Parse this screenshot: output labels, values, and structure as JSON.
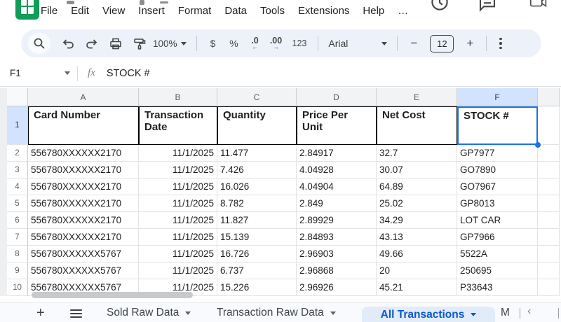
{
  "menu": {
    "items": [
      "File",
      "Edit",
      "View",
      "Insert",
      "Format",
      "Data",
      "Tools",
      "Extensions",
      "Help",
      "…"
    ]
  },
  "toolbar": {
    "zoom_value": "100%",
    "currency_label": "$",
    "percent_label": "%",
    "decrease_decimal_label": ".0",
    "decrease_decimal_arrow": "←",
    "increase_decimal_label": ".00",
    "increase_decimal_arrow": "→",
    "number_format_label": "123",
    "font_name": "Arial",
    "decrease_font_label": "−",
    "font_size": "12",
    "increase_font_label": "+"
  },
  "formula_bar": {
    "cell_reference": "F1",
    "function_label": "fx",
    "content": "STOCK #"
  },
  "grid": {
    "column_letters": [
      "A",
      "B",
      "C",
      "D",
      "E",
      "F",
      ""
    ],
    "selected_column_index": 5,
    "selected_cell": "F1",
    "header_row_number": "1",
    "headers": [
      "Card Number",
      "Transaction Date",
      "Quantity",
      "Price Per Unit",
      "Net Cost",
      "STOCK #"
    ],
    "rows": [
      {
        "n": "2",
        "cells": [
          "556780XXXXXX2170",
          "11/1/2025",
          "11.477",
          "2.84917",
          "32.7",
          "GP7977"
        ]
      },
      {
        "n": "3",
        "cells": [
          "556780XXXXXX2170",
          "11/1/2025",
          "7.426",
          "4.04928",
          "30.07",
          "GO7890"
        ]
      },
      {
        "n": "4",
        "cells": [
          "556780XXXXXX2170",
          "11/1/2025",
          "16.026",
          "4.04904",
          "64.89",
          "GO7967"
        ]
      },
      {
        "n": "5",
        "cells": [
          "556780XXXXXX2170",
          "11/1/2025",
          "8.782",
          "2.849",
          "25.02",
          "GP8013"
        ]
      },
      {
        "n": "6",
        "cells": [
          "556780XXXXXX2170",
          "11/1/2025",
          "11.827",
          "2.89929",
          "34.29",
          "LOT CAR"
        ]
      },
      {
        "n": "7",
        "cells": [
          "556780XXXXXX2170",
          "11/1/2025",
          "15.139",
          "2.84893",
          "43.13",
          "GP7966"
        ]
      },
      {
        "n": "8",
        "cells": [
          "556780XXXXXX5767",
          "11/1/2025",
          "16.726",
          "2.96903",
          "49.66",
          "5522A"
        ]
      },
      {
        "n": "9",
        "cells": [
          "556780XXXXXX5767",
          "11/1/2025",
          "6.737",
          "2.96868",
          "20",
          "250695"
        ]
      },
      {
        "n": "10",
        "cells": [
          "556780XXXXXX5767",
          "11/1/2025",
          "15.226",
          "2.96926",
          "45.21",
          "P33643"
        ]
      }
    ]
  },
  "tabs": {
    "add_label": "+",
    "items": [
      {
        "label": "Sold Raw Data",
        "active": false
      },
      {
        "label": "Transaction Raw Data",
        "active": false
      },
      {
        "label": "All Transactions",
        "active": true
      },
      {
        "label": "M",
        "active": false
      }
    ],
    "scroll_left_label": "‹"
  },
  "colors": {
    "accent": "#1a73e8",
    "selected_header_bg": "#d3e3fd",
    "active_tab_bg": "#e2ecf9",
    "active_tab_text": "#0b57d0",
    "logo_green": "#0f9d58",
    "toolbar_bg": "#edf2fa"
  }
}
